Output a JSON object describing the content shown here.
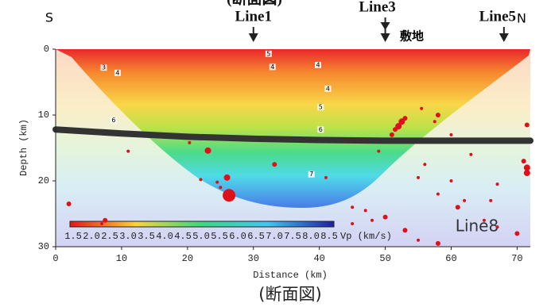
{
  "chart_data": {
    "type": "scatter",
    "top_label": "(断面図)",
    "caption": "(断面図)",
    "xlabel": "Distance (km)",
    "ylabel": "Depth (km)",
    "xlim": [
      0,
      72
    ],
    "ylim": [
      0,
      30
    ],
    "y_inverted": true,
    "xticks": [
      0,
      10,
      20,
      30,
      40,
      50,
      60,
      70
    ],
    "yticks": [
      0,
      10,
      20,
      30
    ],
    "south_label": "S",
    "north_label": "N",
    "markers": [
      {
        "label": "Line1",
        "x": 30
      },
      {
        "label": "Line3",
        "x": 50
      },
      {
        "label": "Line5",
        "x": 68
      }
    ],
    "site_label": "敷地",
    "line8_label": "Line8",
    "colorbar": {
      "label": "Vp (km/s)",
      "ticks": [
        1.5,
        {
          "value": 2,
          "label": "2.0"
        },
        2.5,
        {
          "value": 3,
          "label": "3.0"
        },
        3.5,
        {
          "value": 4,
          "label": "4.0"
        },
        4.5,
        {
          "value": 5,
          "label": "5.0"
        },
        5.5,
        {
          "value": 6,
          "label": "6.0"
        },
        6.5,
        {
          "value": 7,
          "label": "7.0"
        },
        7.5,
        {
          "value": 8,
          "label": "8.0"
        },
        8.5
      ]
    },
    "contour_labels": [
      {
        "value": 3,
        "x": 7.3,
        "y": 2.8
      },
      {
        "value": 4,
        "x": 9.4,
        "y": 3.6
      },
      {
        "value": 6,
        "x": 8.8,
        "y": 10.8
      },
      {
        "value": 5,
        "x": 32.3,
        "y": 0.7
      },
      {
        "value": 4,
        "x": 32.9,
        "y": 2.7
      },
      {
        "value": 4,
        "x": 39.8,
        "y": 2.4
      },
      {
        "value": 4,
        "x": 41.3,
        "y": 6.0
      },
      {
        "value": 5,
        "x": 40.2,
        "y": 8.8
      },
      {
        "value": 6,
        "x": 40.2,
        "y": 12.2
      },
      {
        "value": 7,
        "x": 38.8,
        "y": 19.0
      }
    ],
    "boundary": {
      "color": "#333333",
      "x": [
        0,
        10,
        20,
        30,
        40,
        50,
        60,
        72
      ],
      "values": [
        12.2,
        12.8,
        13.3,
        13.6,
        13.8,
        13.9,
        13.9,
        13.9
      ]
    },
    "color": "#e0101a",
    "x": [
      26.3,
      23.1,
      20.3,
      22,
      24.5,
      26,
      25,
      33.2,
      11,
      2,
      7.5,
      7,
      52.5,
      52,
      51.5,
      53,
      51,
      55.5,
      58,
      57.5,
      60,
      63,
      55,
      58,
      66,
      71.5,
      71,
      71.5,
      71.5,
      45,
      47,
      50,
      48,
      53,
      55,
      58,
      65,
      67,
      70,
      60,
      61,
      56,
      49,
      41,
      45,
      67,
      62
    ],
    "values": [
      22.2,
      15.4,
      14.2,
      19.8,
      20.2,
      19.5,
      21,
      17.5,
      15.5,
      23.5,
      26,
      26.5,
      11,
      11.7,
      12.2,
      10.5,
      13,
      9,
      10,
      11,
      13,
      16,
      19.5,
      22,
      23,
      18,
      17,
      18.8,
      11.5,
      24,
      24.5,
      25.5,
      26,
      27.5,
      29,
      29.5,
      26,
      27,
      28,
      20,
      24,
      17.5,
      15.5,
      19.5,
      26.5,
      20.5,
      23
    ],
    "sizes": [
      4,
      2,
      1,
      1,
      1,
      2,
      1,
      1.5,
      1,
      1.5,
      1.5,
      1,
      2,
      2,
      1.5,
      1.5,
      1.5,
      1,
      1.5,
      1,
      1,
      1,
      1,
      1,
      1,
      2,
      1.5,
      2,
      1.5,
      1,
      1,
      1.5,
      1,
      1.5,
      1,
      1.5,
      1,
      1,
      1.5,
      1,
      1.5,
      1,
      1,
      1,
      1,
      1,
      1
    ]
  }
}
